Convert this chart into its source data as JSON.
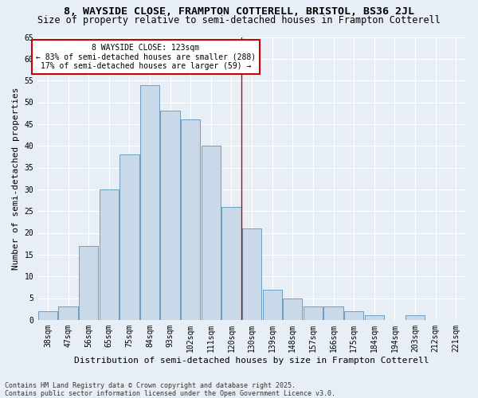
{
  "title1": "8, WAYSIDE CLOSE, FRAMPTON COTTERELL, BRISTOL, BS36 2JL",
  "title2": "Size of property relative to semi-detached houses in Frampton Cotterell",
  "xlabel": "Distribution of semi-detached houses by size in Frampton Cotterell",
  "ylabel": "Number of semi-detached properties",
  "footer": "Contains HM Land Registry data © Crown copyright and database right 2025.\nContains public sector information licensed under the Open Government Licence v3.0.",
  "categories": [
    "38sqm",
    "47sqm",
    "56sqm",
    "65sqm",
    "75sqm",
    "84sqm",
    "93sqm",
    "102sqm",
    "111sqm",
    "120sqm",
    "130sqm",
    "139sqm",
    "148sqm",
    "157sqm",
    "166sqm",
    "175sqm",
    "184sqm",
    "194sqm",
    "203sqm",
    "212sqm",
    "221sqm"
  ],
  "values": [
    2,
    3,
    17,
    30,
    38,
    54,
    48,
    46,
    40,
    26,
    21,
    7,
    5,
    3,
    3,
    2,
    1,
    0,
    1,
    0,
    0
  ],
  "bar_color": "#c9d9ea",
  "bar_edge_color": "#6a9fbe",
  "vline_color": "#cc0000",
  "vline_x": 9.5,
  "annotation_text_line1": "8 WAYSIDE CLOSE: 123sqm",
  "annotation_text_line2": "← 83% of semi-detached houses are smaller (288)",
  "annotation_text_line3": "17% of semi-detached houses are larger (59) →",
  "annotation_box_facecolor": "#ffffff",
  "annotation_box_edgecolor": "#cc0000",
  "ylim": [
    0,
    65
  ],
  "yticks": [
    0,
    5,
    10,
    15,
    20,
    25,
    30,
    35,
    40,
    45,
    50,
    55,
    60,
    65
  ],
  "background_color": "#e8eef5",
  "grid_color": "#ffffff",
  "title1_fontsize": 9.5,
  "title2_fontsize": 8.5,
  "xlabel_fontsize": 8,
  "ylabel_fontsize": 8,
  "tick_fontsize": 7,
  "annotation_fontsize": 7,
  "footer_fontsize": 6
}
